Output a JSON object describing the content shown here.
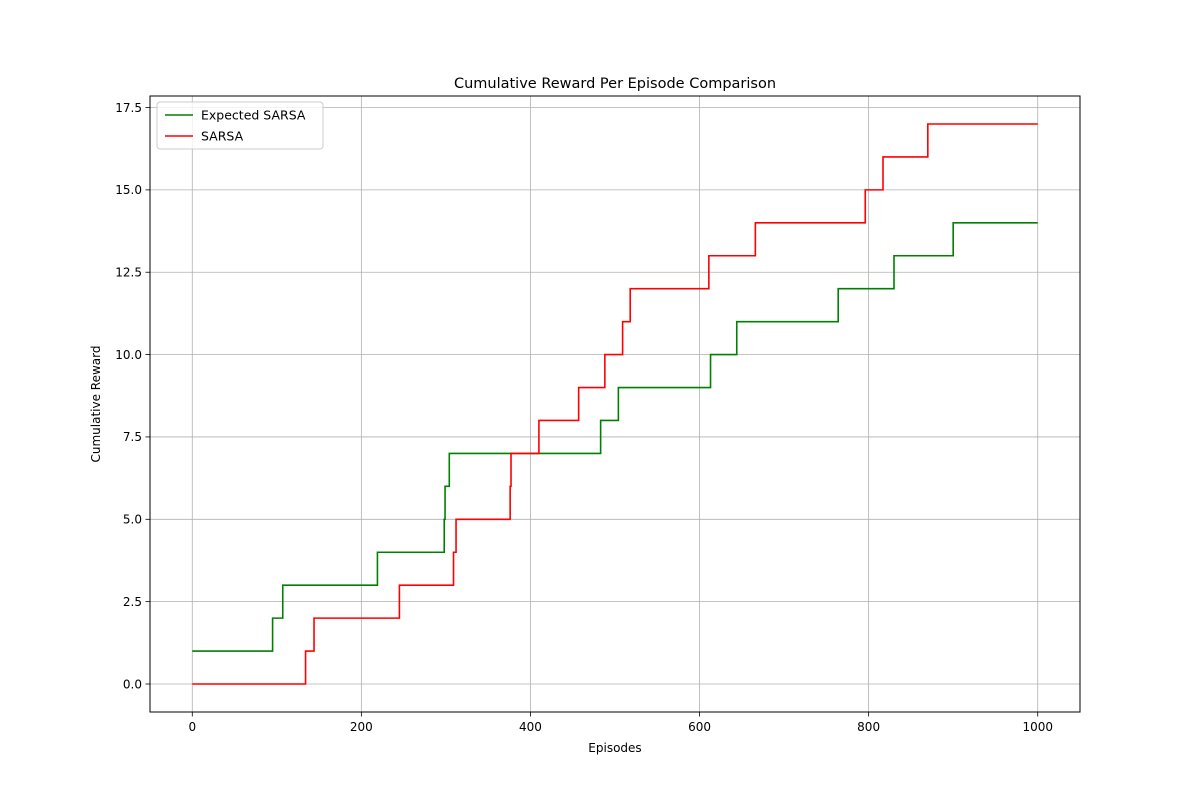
{
  "chart_data": {
    "type": "line",
    "step": "post",
    "title": "Cumulative Reward Per Episode Comparison",
    "xlabel": "Episodes",
    "ylabel": "Cumulative Reward",
    "xlim": [
      -50,
      1050
    ],
    "ylim": [
      -0.85,
      17.85
    ],
    "xticks": [
      0,
      200,
      400,
      600,
      800,
      1000
    ],
    "xtick_labels": [
      "0",
      "200",
      "400",
      "600",
      "800",
      "1000"
    ],
    "yticks": [
      0,
      2.5,
      5,
      7.5,
      10,
      12.5,
      15,
      17.5
    ],
    "ytick_labels": [
      "0.0",
      "2.5",
      "5.0",
      "7.5",
      "10.0",
      "12.5",
      "15.0",
      "17.5"
    ],
    "grid": true,
    "legend_position": "top-left",
    "series": [
      {
        "name": "Expected SARSA",
        "color": "#008000",
        "x": [
          0,
          95,
          107,
          219,
          298,
          299,
          302,
          304,
          483,
          504,
          613,
          644,
          764,
          830,
          900,
          1000
        ],
        "y": [
          1,
          2,
          3,
          4,
          5,
          6,
          6,
          7,
          8,
          9,
          10,
          11,
          12,
          13,
          14,
          14
        ]
      },
      {
        "name": "SARSA",
        "color": "#ff0000",
        "x": [
          0,
          134,
          144,
          245,
          309,
          312,
          375,
          376,
          377,
          410,
          457,
          488,
          509,
          518,
          611,
          666,
          796,
          817,
          870,
          1000
        ],
        "y": [
          0,
          1,
          2,
          3,
          4,
          5,
          5,
          6,
          7,
          8,
          9,
          10,
          11,
          12,
          13,
          14,
          15,
          16,
          17,
          17
        ]
      }
    ]
  }
}
